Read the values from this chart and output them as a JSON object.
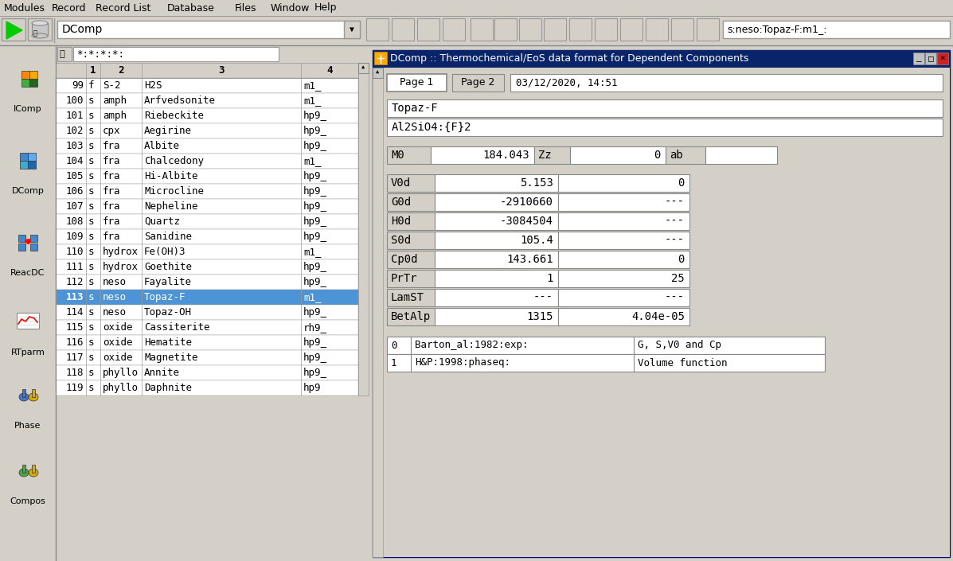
{
  "title_bar": "DComp :: Thermochemical/EoS data format for Dependent Components",
  "menu_items": [
    "Modules",
    "Record",
    "Record List",
    "Database",
    "Files",
    "Window",
    "Help"
  ],
  "menu_x": [
    5,
    65,
    120,
    210,
    295,
    340,
    395
  ],
  "toolbar_dropdown": "DComp",
  "search_text": "*:*:*:*:",
  "table_headers": [
    "",
    "1",
    "2",
    "3",
    "4"
  ],
  "table_rows": [
    [
      "99",
      "f",
      "S-2",
      "H2S",
      "m1_"
    ],
    [
      "100",
      "s",
      "amph",
      "Arfvedsonite",
      "m1_"
    ],
    [
      "101",
      "s",
      "amph",
      "Riebeckite",
      "hp9_"
    ],
    [
      "102",
      "s",
      "cpx",
      "Aegirine",
      "hp9_"
    ],
    [
      "103",
      "s",
      "fra",
      "Albite",
      "hp9_"
    ],
    [
      "104",
      "s",
      "fra",
      "Chalcedony",
      "m1_"
    ],
    [
      "105",
      "s",
      "fra",
      "Hi-Albite",
      "hp9_"
    ],
    [
      "106",
      "s",
      "fra",
      "Microcline",
      "hp9_"
    ],
    [
      "107",
      "s",
      "fra",
      "Nepheline",
      "hp9_"
    ],
    [
      "108",
      "s",
      "fra",
      "Quartz",
      "hp9_"
    ],
    [
      "109",
      "s",
      "fra",
      "Sanidine",
      "hp9_"
    ],
    [
      "110",
      "s",
      "hydrox",
      "Fe(OH)3",
      "m1_"
    ],
    [
      "111",
      "s",
      "hydrox",
      "Goethite",
      "hp9_"
    ],
    [
      "112",
      "s",
      "neso",
      "Fayalite",
      "hp9_"
    ],
    [
      "113",
      "s",
      "neso",
      "Topaz-F",
      "m1_"
    ],
    [
      "114",
      "s",
      "neso",
      "Topaz-OH",
      "hp9_"
    ],
    [
      "115",
      "s",
      "oxide",
      "Cassiterite",
      "rh9_"
    ],
    [
      "116",
      "s",
      "oxide",
      "Hematite",
      "hp9_"
    ],
    [
      "117",
      "s",
      "oxide",
      "Magnetite",
      "hp9_"
    ],
    [
      "118",
      "s",
      "phyllo",
      "Annite",
      "hp9_"
    ],
    [
      "119",
      "s",
      "phyllo",
      "Daphnite",
      "hp9"
    ]
  ],
  "selected_row_idx": 14,
  "selected_row_color": "#4d94d6",
  "page1_label": "Page 1",
  "page2_label": "Page 2",
  "date_label": "03/12/2020, 14:51",
  "mineral_name": "Topaz-F",
  "formula": "Al2SiO4:{F}2",
  "param_fields": [
    {
      "label": "V0d",
      "val1": "5.153",
      "val2": "0"
    },
    {
      "label": "G0d",
      "val1": "-2910660",
      "val2": "---"
    },
    {
      "label": "H0d",
      "val1": "-3084504",
      "val2": "---"
    },
    {
      "label": "S0d",
      "val1": "105.4",
      "val2": "---"
    },
    {
      "label": "Cp0d",
      "val1": "143.661",
      "val2": "0"
    },
    {
      "label": "PrTr",
      "val1": "1",
      "val2": "25"
    },
    {
      "label": "LamST",
      "val1": "---",
      "val2": "---"
    },
    {
      "label": "BetAlp",
      "val1": "1315",
      "val2": "4.04e-05"
    }
  ],
  "ref_rows": [
    [
      "0",
      "Barton_al:1982:exp:",
      "G, S,V0 and Cp"
    ],
    [
      "1",
      "H&P:1998:phaseq:",
      "Volume function"
    ]
  ],
  "bg_color": "#d4d0c8",
  "window_title_bg": "#0a246a",
  "toolbar_search_text": "s:neso:Topaz-F:m1_:",
  "sidebar_labels": [
    "IComp",
    "DComp",
    "ReacDC",
    "RTparm",
    "Phase",
    "Compos"
  ],
  "sidebar_y": [
    62,
    165,
    268,
    368,
    460,
    555
  ]
}
